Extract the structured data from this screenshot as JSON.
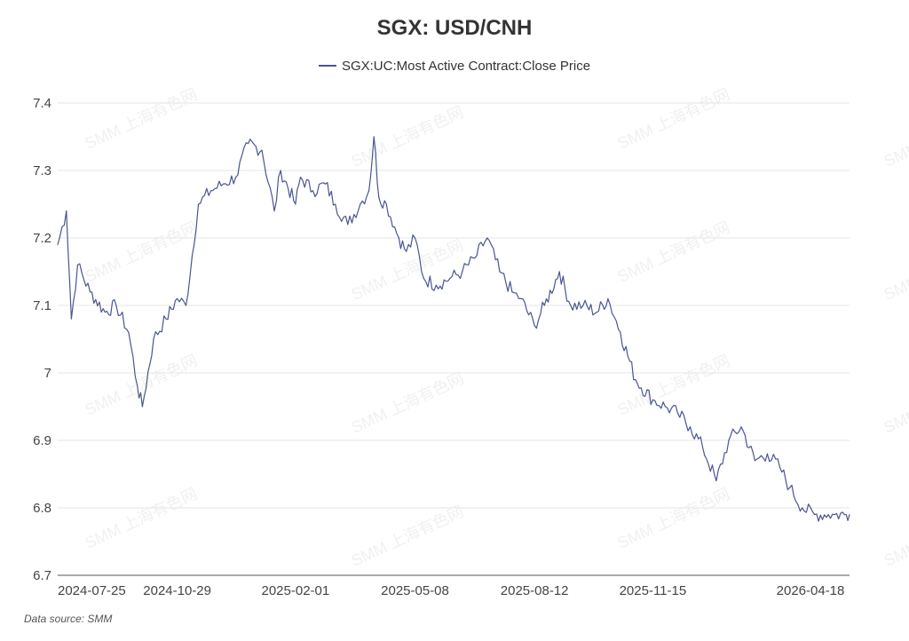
{
  "chart_data": {
    "type": "line",
    "title": "SGX: USD/CNH",
    "xlabel": "",
    "ylabel": "",
    "ylim": [
      6.7,
      7.4
    ],
    "y_ticks": [
      "6.7",
      "6.8",
      "6.9",
      "7",
      "7.1",
      "7.2",
      "7.3",
      "7.4"
    ],
    "x_ticks": [
      "2024-07-25",
      "2024-10-29",
      "2025-02-01",
      "2025-05-08",
      "2025-08-12",
      "2025-11-15",
      "2026-04-18"
    ],
    "grid": "horizontal",
    "legend_position": "top-center",
    "series": [
      {
        "name": "SGX:UC:Most Active Contract:Close Price",
        "color": "#4a5590",
        "x": [
          "2024-07-25",
          "2024-08-01",
          "2024-08-05",
          "2024-08-10",
          "2024-08-20",
          "2024-09-01",
          "2024-09-10",
          "2024-09-20",
          "2024-09-27",
          "2024-10-01",
          "2024-10-10",
          "2024-10-20",
          "2024-10-29",
          "2024-11-05",
          "2024-11-15",
          "2024-11-25",
          "2024-12-05",
          "2024-12-15",
          "2024-12-25",
          "2025-01-05",
          "2025-01-15",
          "2025-01-20",
          "2025-02-01",
          "2025-02-05",
          "2025-02-15",
          "2025-02-25",
          "2025-03-05",
          "2025-03-15",
          "2025-03-25",
          "2025-04-01",
          "2025-04-05",
          "2025-04-09",
          "2025-04-15",
          "2025-04-25",
          "2025-05-01",
          "2025-05-08",
          "2025-05-15",
          "2025-05-25",
          "2025-06-05",
          "2025-06-15",
          "2025-06-25",
          "2025-07-05",
          "2025-07-15",
          "2025-07-25",
          "2025-08-01",
          "2025-08-12",
          "2025-08-20",
          "2025-09-01",
          "2025-09-10",
          "2025-09-20",
          "2025-10-01",
          "2025-10-10",
          "2025-10-20",
          "2025-11-01",
          "2025-11-15",
          "2025-11-25",
          "2025-12-05",
          "2025-12-15",
          "2025-12-25",
          "2026-01-05",
          "2026-01-15",
          "2026-01-25",
          "2026-02-05",
          "2026-02-15",
          "2026-02-25",
          "2026-03-05",
          "2026-03-15",
          "2026-03-25",
          "2026-04-05",
          "2026-04-10",
          "2026-04-18",
          "2026-04-22"
        ],
        "values": [
          7.19,
          7.24,
          7.08,
          7.16,
          7.12,
          7.09,
          7.1,
          7.06,
          6.98,
          6.95,
          7.05,
          7.08,
          7.11,
          7.1,
          7.25,
          7.27,
          7.28,
          7.29,
          7.34,
          7.33,
          7.24,
          7.3,
          7.25,
          7.29,
          7.27,
          7.28,
          7.25,
          7.22,
          7.25,
          7.27,
          7.35,
          7.26,
          7.25,
          7.2,
          7.18,
          7.2,
          7.14,
          7.13,
          7.14,
          7.15,
          7.17,
          7.2,
          7.15,
          7.12,
          7.11,
          7.07,
          7.1,
          7.15,
          7.1,
          7.1,
          7.09,
          7.11,
          7.06,
          6.99,
          6.96,
          6.95,
          6.94,
          6.92,
          6.89,
          6.84,
          6.9,
          6.92,
          6.87,
          6.88,
          6.86,
          6.83,
          6.8,
          6.79,
          6.79,
          6.79,
          6.79,
          6.79
        ]
      }
    ]
  },
  "footer": {
    "source": "Data source:  SMM"
  },
  "watermark": {
    "text": "SMM 上海有色网"
  }
}
